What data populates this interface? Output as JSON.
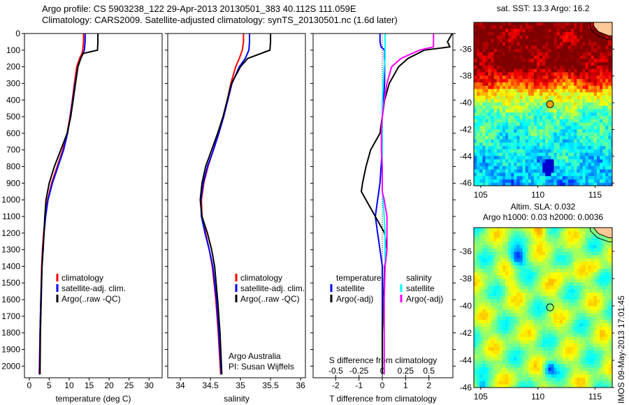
{
  "header": {
    "line1": "Argo profile: CS 5903238_122 29-Apr-2013 20130501_383 40.112S 111.059E",
    "line2": "Climatology: CARS2009. Satellite-adjusted climatology: synTS_20130501.nc (1.6d later)"
  },
  "credit": "IMOS 09-May-2013 17:01:45",
  "colors": {
    "climatology": "#ff0000",
    "satellite": "#0000ff",
    "argo": "#000000",
    "s_satellite": "#00ffff",
    "s_argo": "#ff00ff"
  },
  "chart_data": [
    {
      "type": "line",
      "id": "temperature",
      "xlabel": "temperature (deg C)",
      "xlim": [
        -1.2,
        33.3
      ],
      "xticks": [
        0,
        5,
        10,
        15,
        20,
        25,
        30
      ],
      "ylim": [
        0,
        2070
      ],
      "yticks": [
        0,
        100,
        200,
        300,
        400,
        500,
        600,
        700,
        800,
        900,
        1000,
        1100,
        1200,
        1300,
        1400,
        1500,
        1600,
        1700,
        1800,
        1900,
        2000
      ],
      "legend": [
        "climatology",
        "satellite-adj. clim.",
        "Argo(..raw -QC)"
      ],
      "depth": [
        0,
        50,
        100,
        120,
        150,
        200,
        300,
        400,
        500,
        600,
        700,
        800,
        900,
        1000,
        1100,
        1200,
        1300,
        1400,
        1600,
        1800,
        2050
      ],
      "series": [
        {
          "name": "climatology",
          "color": "#ff0000",
          "values": [
            13.6,
            13.6,
            13.4,
            13.2,
            12.6,
            11.9,
            11.3,
            10.8,
            10.2,
            9.5,
            8.4,
            7.0,
            5.6,
            4.6,
            4.0,
            3.6,
            3.3,
            3.1,
            2.9,
            2.7,
            2.5
          ]
        },
        {
          "name": "satellite-adj. clim.",
          "color": "#0000ff",
          "values": [
            14.0,
            14.0,
            13.8,
            13.5,
            12.9,
            12.2,
            11.5,
            10.9,
            10.3,
            9.6,
            8.6,
            7.2,
            5.8,
            4.7,
            4.1,
            3.7,
            3.4,
            3.2,
            2.9,
            2.7,
            2.6
          ]
        },
        {
          "name": "Argo(..raw -QC)",
          "color": "#000000",
          "values": [
            17.2,
            17.2,
            17.1,
            13.5,
            12.9,
            12.2,
            11.6,
            11.0,
            10.4,
            9.5,
            7.9,
            6.3,
            5.0,
            4.2,
            3.9,
            3.7,
            3.5,
            3.2,
            3.0,
            2.8,
            2.7
          ]
        }
      ]
    },
    {
      "type": "line",
      "id": "salinity",
      "xlabel": "salinity",
      "xlim": [
        33.79,
        36.08
      ],
      "xticks": [
        34,
        34.5,
        35,
        35.5,
        36
      ],
      "ylim": [
        0,
        2070
      ],
      "legend": [
        "climatology",
        "satellite-adj. clim.",
        "Argo(..raw -QC)"
      ],
      "annotation": [
        "Argo Australia",
        "PI: Susan Wijffels"
      ],
      "depth": [
        0,
        50,
        100,
        150,
        200,
        300,
        400,
        500,
        600,
        700,
        800,
        900,
        1000,
        1100,
        1200,
        1300,
        1400,
        1600,
        1800,
        2050
      ],
      "series": [
        {
          "name": "climatology",
          "color": "#ff0000",
          "values": [
            35.05,
            35.05,
            35.03,
            34.98,
            34.92,
            34.84,
            34.78,
            34.72,
            34.64,
            34.55,
            34.46,
            34.39,
            34.35,
            34.36,
            34.42,
            34.48,
            34.53,
            34.59,
            34.63,
            34.67
          ]
        },
        {
          "name": "satellite-adj. clim.",
          "color": "#0000ff",
          "values": [
            35.15,
            35.15,
            35.14,
            35.08,
            34.98,
            34.86,
            34.79,
            34.72,
            34.64,
            34.55,
            34.45,
            34.38,
            34.34,
            34.35,
            34.41,
            34.48,
            34.54,
            34.6,
            34.64,
            34.68
          ]
        },
        {
          "name": "Argo(..raw -QC)",
          "color": "#000000",
          "values": [
            35.5,
            35.5,
            35.49,
            35.12,
            35.0,
            34.85,
            34.78,
            34.71,
            34.62,
            34.52,
            34.42,
            34.36,
            34.33,
            34.36,
            34.45,
            34.52,
            34.57,
            34.62,
            34.66,
            34.69
          ]
        }
      ]
    },
    {
      "type": "line",
      "id": "difference",
      "xlabel": "T difference from climatology",
      "xlabel2": "S difference from climatology",
      "xlim": [
        -2.97,
        3.03
      ],
      "xticks": [
        -2,
        -1,
        0,
        1,
        2
      ],
      "xticks2": [
        -0.5,
        -0.25,
        0,
        0.25,
        0.5
      ],
      "xtick2_labels": [
        "-0.5",
        "-0.25",
        "0",
        "0.25",
        "0.5"
      ],
      "s_scale": 4,
      "ylim": [
        0,
        2070
      ],
      "legend": {
        "temp_title": "temperature",
        "sal_title": "salinity",
        "items": [
          "satellite",
          "Argo(-adj)",
          "satellite",
          "Argo(-adj)"
        ]
      },
      "depth": [
        0,
        50,
        80,
        100,
        150,
        200,
        300,
        400,
        500,
        600,
        700,
        800,
        900,
        950,
        1000,
        1100,
        1200,
        1300,
        1400,
        1600,
        1800,
        2050
      ],
      "series": [
        {
          "name": "T satellite",
          "color": "#0000ff",
          "var": "T",
          "values": [
            -0.1,
            -0.1,
            -0.05,
            0.1,
            0.1,
            0.1,
            0.1,
            0.05,
            0.0,
            0.0,
            0.0,
            -0.05,
            -0.1,
            -0.15,
            -0.2,
            -0.3,
            -0.2,
            -0.1,
            0.0,
            0.0,
            0.0,
            0.0
          ]
        },
        {
          "name": "T Argo(-adj)",
          "color": "#000000",
          "var": "T",
          "values": [
            3.0,
            2.8,
            2.9,
            1.8,
            1.1,
            0.7,
            0.3,
            0.1,
            0.0,
            -0.1,
            -0.5,
            -0.7,
            -0.85,
            -0.9,
            -0.7,
            -0.3,
            0.1,
            0.2,
            0.1,
            0.05,
            0.0,
            0.0
          ]
        },
        {
          "name": "S satellite",
          "color": "#00ffff",
          "var": "S",
          "values": [
            0.03,
            0.03,
            0.03,
            0.03,
            0.03,
            0.02,
            0.01,
            0.0,
            0.0,
            0.0,
            0.0,
            0.0,
            0.0,
            0.0,
            0.01,
            0.02,
            0.03,
            0.03,
            0.03,
            0.02,
            0.02,
            0.02
          ]
        },
        {
          "name": "S Argo(-adj)",
          "color": "#ff00ff",
          "var": "S",
          "values": [
            0.55,
            0.55,
            0.55,
            0.4,
            0.2,
            0.1,
            0.05,
            0.02,
            0.0,
            -0.01,
            -0.01,
            0.0,
            0.0,
            0.0,
            0.02,
            0.05,
            0.05,
            0.05,
            0.03,
            0.02,
            0.02,
            0.02
          ]
        }
      ]
    },
    {
      "type": "heatmap",
      "id": "sst-map",
      "title": "sat. SST: 13.3 Argo: 16.2",
      "lonlim": [
        104.4,
        116.5
      ],
      "latlim": [
        -46.2,
        -34.0
      ],
      "xticks": [
        105,
        110,
        115
      ],
      "yticks": [
        -36,
        -38,
        -40,
        -42,
        -44,
        -46
      ],
      "argo_position": {
        "lon": 111.059,
        "lat": -40.112
      }
    },
    {
      "type": "heatmap",
      "id": "sla-map",
      "title": "Altim. SLA: 0.032",
      "subtitle": "Argo h1000: 0.03 h2000: 0.0036",
      "lonlim": [
        104.4,
        116.5
      ],
      "latlim": [
        -46.0,
        -34.26
      ],
      "xticks": [
        105,
        110,
        115
      ],
      "yticks": [
        -36,
        -38,
        -40,
        -42,
        -44,
        -46
      ],
      "argo_position": {
        "lon": 111.059,
        "lat": -40.112
      }
    }
  ]
}
